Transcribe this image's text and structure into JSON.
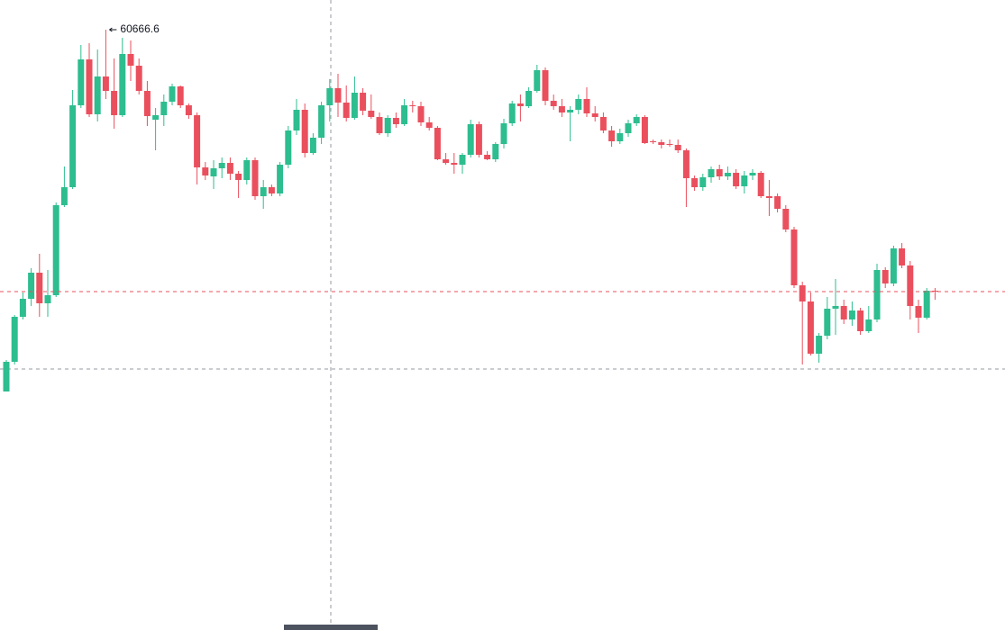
{
  "chart_data": {
    "type": "candlestick",
    "up_color": "#2dbd8f",
    "down_color": "#ea4f5d",
    "ylim": [
      53996.6,
      60996.6
    ],
    "open": [
      56646.6,
      56976.6,
      57476.6,
      57676.6,
      57966.6,
      57626.6,
      57716.6,
      58716.6,
      58916.6,
      59826.6,
      60336.6,
      59726.6,
      60146.6,
      59986.6,
      59716.6,
      60396.6,
      60266.6,
      59986.6,
      59666.6,
      59716.6,
      59866.6,
      60036.6,
      59826.6,
      59716.6,
      59136.6,
      59036.6,
      59126.6,
      59186.6,
      59066.6,
      58996.6,
      59216.6,
      58816.6,
      58916.6,
      58846.6,
      59166.6,
      59546.6,
      59776.6,
      59296.6,
      59466.6,
      59826.6,
      60016.6,
      59856.6,
      59686.6,
      59966.6,
      59766.6,
      59696.6,
      59516.6,
      59686.6,
      59616.6,
      59826.6,
      59816.6,
      59636.6,
      59576.6,
      59226.6,
      59186.6,
      59166.6,
      59276.6,
      59616.6,
      59276.6,
      59226.6,
      59396.6,
      59626.6,
      59846.6,
      59816.6,
      59986.6,
      60216.6,
      59876.6,
      59816.6,
      59746.6,
      59776.6,
      59896.6,
      59736.6,
      59696.6,
      59546.6,
      59426.6,
      59516.6,
      59626.6,
      59696.6,
      59426.6,
      59416.6,
      59396.6,
      59386.6,
      59326.6,
      59016.6,
      58916.6,
      59026.6,
      59116.6,
      59036.6,
      59076.6,
      58926.6,
      59046.6,
      59076.6,
      58816.6,
      58816.6,
      58676.6,
      58446.6,
      57826.6,
      57646.6,
      57066.6,
      57266.6,
      57566.6,
      57596.6,
      57446.6,
      57546.6,
      57316.6,
      57446.6,
      57996.6,
      57846.6,
      58236.6,
      58046.6,
      57596.6,
      57466.6,
      57766.6
    ],
    "high": [
      56996.6,
      57496.6,
      57746.6,
      58016.6,
      58176.6,
      57996.6,
      58746.6,
      59146.6,
      59996.6,
      60496.6,
      60516.6,
      60446.6,
      60666.6,
      60346.6,
      60576.6,
      60546.6,
      60346.6,
      60096.6,
      59796.6,
      59946.6,
      60066.6,
      60046.6,
      59846.6,
      59746.6,
      59196.6,
      59216.6,
      59246.6,
      59246.6,
      59096.6,
      59246.6,
      59246.6,
      58996.6,
      58946.6,
      59196.6,
      59596.6,
      59896.6,
      59846.6,
      59516.6,
      59866.6,
      60116.6,
      60176.6,
      60046.6,
      60146.6,
      60016.6,
      59946.6,
      59746.6,
      59716.6,
      59746.6,
      59896.6,
      59876.6,
      59866.6,
      59696.6,
      59596.6,
      59296.6,
      59296.6,
      59296.6,
      59666.6,
      59646.6,
      59316.6,
      59416.6,
      59676.6,
      59876.6,
      59946.6,
      60026.6,
      60276.6,
      60246.6,
      59946.6,
      59896.6,
      59816.6,
      59946.6,
      60026.6,
      59816.6,
      59746.6,
      59596.6,
      59566.6,
      59666.6,
      59726.6,
      59716.6,
      59446.6,
      59446.6,
      59446.6,
      59446.6,
      59346.6,
      59046.6,
      59066.6,
      59146.6,
      59166.6,
      59146.6,
      59116.6,
      59096.6,
      59116.6,
      59096.6,
      58996.6,
      58846.6,
      58716.6,
      58476.6,
      57866.6,
      57746.6,
      57296.6,
      57696.6,
      57896.6,
      57666.6,
      57646.6,
      57576.6,
      57596.6,
      58066.6,
      58026.6,
      58266.6,
      58296.6,
      58096.6,
      57666.6,
      57796.6,
      57796.6
    ],
    "low": [
      56646.6,
      56946.6,
      57446.6,
      57596.6,
      57476.6,
      57476.6,
      57696.6,
      58696.6,
      58896.6,
      59796.6,
      59696.6,
      59646.6,
      59896.6,
      59566.6,
      59696.6,
      60096.6,
      59946.6,
      59596.6,
      59326.6,
      59596.6,
      59826.6,
      59796.6,
      59676.6,
      58946.6,
      58996.6,
      58896.6,
      59016.6,
      58996.6,
      58796.6,
      58946.6,
      58776.6,
      58676.6,
      58816.6,
      58816.6,
      59126.6,
      59496.6,
      59246.6,
      59276.6,
      59396.6,
      59646.6,
      59696.6,
      59646.6,
      59666.6,
      59716.6,
      59676.6,
      59496.6,
      59476.6,
      59576.6,
      59596.6,
      59746.6,
      59596.6,
      59546.6,
      59216.6,
      59166.6,
      59066.6,
      59066.6,
      59246.6,
      59246.6,
      59216.6,
      59196.6,
      59346.6,
      59596.6,
      59646.6,
      59796.6,
      59966.6,
      59826.6,
      59776.6,
      59696.6,
      59426.6,
      59726.6,
      59696.6,
      59646.6,
      59516.6,
      59366.6,
      59396.6,
      59476.6,
      59596.6,
      59396.6,
      59396.6,
      59346.6,
      59366.6,
      59296.6,
      58696.6,
      58876.6,
      58876.6,
      58966.6,
      58996.6,
      58996.6,
      58896.6,
      58846.6,
      58996.6,
      58796.6,
      58596.6,
      58636.6,
      58416.6,
      57796.6,
      56946.6,
      57046.6,
      56966.6,
      57226.6,
      57276.6,
      57396.6,
      57376.6,
      57276.6,
      57296.6,
      57416.6,
      57796.6,
      57816.6,
      58016.6,
      57446.6,
      57296.6,
      57446.6,
      57666.6
    ],
    "close": [
      56976.6,
      57476.6,
      57676.6,
      57966.6,
      57626.6,
      57716.6,
      58716.6,
      58916.6,
      59826.6,
      60336.6,
      59726.6,
      60146.6,
      59986.6,
      59716.6,
      60396.6,
      60266.6,
      59986.6,
      59706.6,
      59716.6,
      59866.6,
      60036.6,
      59826.6,
      59716.6,
      59136.6,
      59046.6,
      59126.6,
      59186.6,
      59066.6,
      58996.6,
      59216.6,
      58816.6,
      58916.6,
      58846.6,
      59166.6,
      59546.6,
      59776.6,
      59296.6,
      59466.6,
      59826.6,
      60016.6,
      59856.6,
      59686.6,
      59966.6,
      59766.6,
      59696.6,
      59516.6,
      59686.6,
      59616.6,
      59826.6,
      59816.6,
      59636.6,
      59576.6,
      59226.6,
      59186.6,
      59166.6,
      59276.6,
      59616.6,
      59276.6,
      59226.6,
      59396.6,
      59626.6,
      59846.6,
      59816.6,
      59986.6,
      60216.6,
      59876.6,
      59816.6,
      59746.6,
      59776.6,
      59896.6,
      59736.6,
      59696.6,
      59546.6,
      59426.6,
      59516.6,
      59626.6,
      59696.6,
      59406.6,
      59416.6,
      59386.6,
      59386.6,
      59326.6,
      59016.6,
      58916.6,
      59026.6,
      59116.6,
      59036.6,
      59076.6,
      58926.6,
      59046.6,
      59076.6,
      58816.6,
      58796.6,
      58676.6,
      58446.6,
      57826.6,
      57646.6,
      57066.6,
      57266.6,
      57566.6,
      57596.6,
      57446.6,
      57546.6,
      57316.6,
      57446.6,
      57996.6,
      57846.6,
      58236.6,
      58046.6,
      57596.6,
      57466.6,
      57766.6,
      57756.6
    ]
  }
}
